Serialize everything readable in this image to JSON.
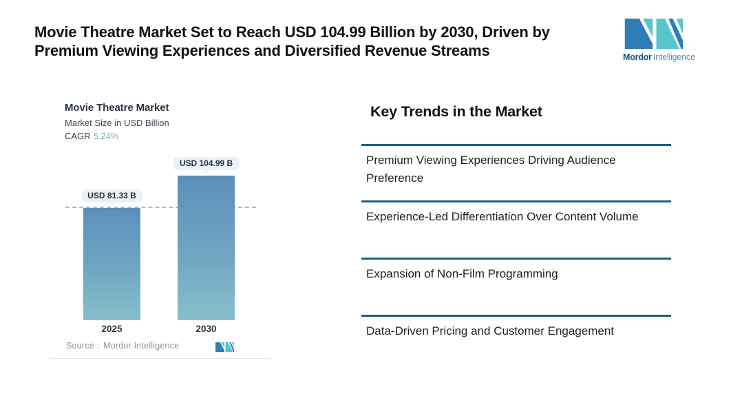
{
  "header": {
    "title": "Movie Theatre Market Set to Reach USD 104.99 Billion by 2030, Driven by Premium Viewing Experiences and Diversified Revenue Streams",
    "brand": {
      "bold": "Mordor",
      "light": "Intelligence"
    }
  },
  "chart": {
    "title": "Movie Theatre Market",
    "subtitle": "Market Size in USD Billion",
    "cagr_label": "CAGR",
    "cagr_value": "5.24%",
    "source_label": "Source :",
    "source_value": "Mordor Intelligence",
    "bars": [
      {
        "year": "2025",
        "label": "USD 81.33 B"
      },
      {
        "year": "2030",
        "label": "USD 104.99 B"
      }
    ]
  },
  "chart_data": {
    "type": "bar",
    "title": "Movie Theatre Market",
    "subtitle": "Market Size in USD Billion",
    "cagr_percent": 5.24,
    "categories": [
      "2025",
      "2030"
    ],
    "values": [
      81.33,
      104.99
    ],
    "data_labels": [
      "USD 81.33 B",
      "USD 104.99 B"
    ],
    "unit": "USD Billion",
    "reference_line": 81.33,
    "reference_line_style": "dashed",
    "legend": "none",
    "grid": false,
    "source": "Mordor Intelligence"
  },
  "trends": {
    "heading": "Key Trends in the Market",
    "items": [
      "Premium Viewing Experiences Driving Audience Preference",
      "Experience-Led Differentiation Over Content Volume",
      "Expansion of Non-Film Programming",
      "Data-Driven Pricing and Customer Engagement"
    ]
  },
  "palette": {
    "bar_gradient_top": "#5c90bb",
    "bar_gradient_bottom": "#87c0cb",
    "dashed_reference_line": "#a7bcd6",
    "badge_background": "#eef1f4",
    "trend_divider": "#1e5f7e",
    "cagr_value_color": "#79add0",
    "logo_blue": "#2f7cb6",
    "logo_teal": "#56c6ca",
    "brand_dark_blue": "#19507f",
    "brand_light_blue": "#4e94c9",
    "source_text": "#8d939b"
  }
}
